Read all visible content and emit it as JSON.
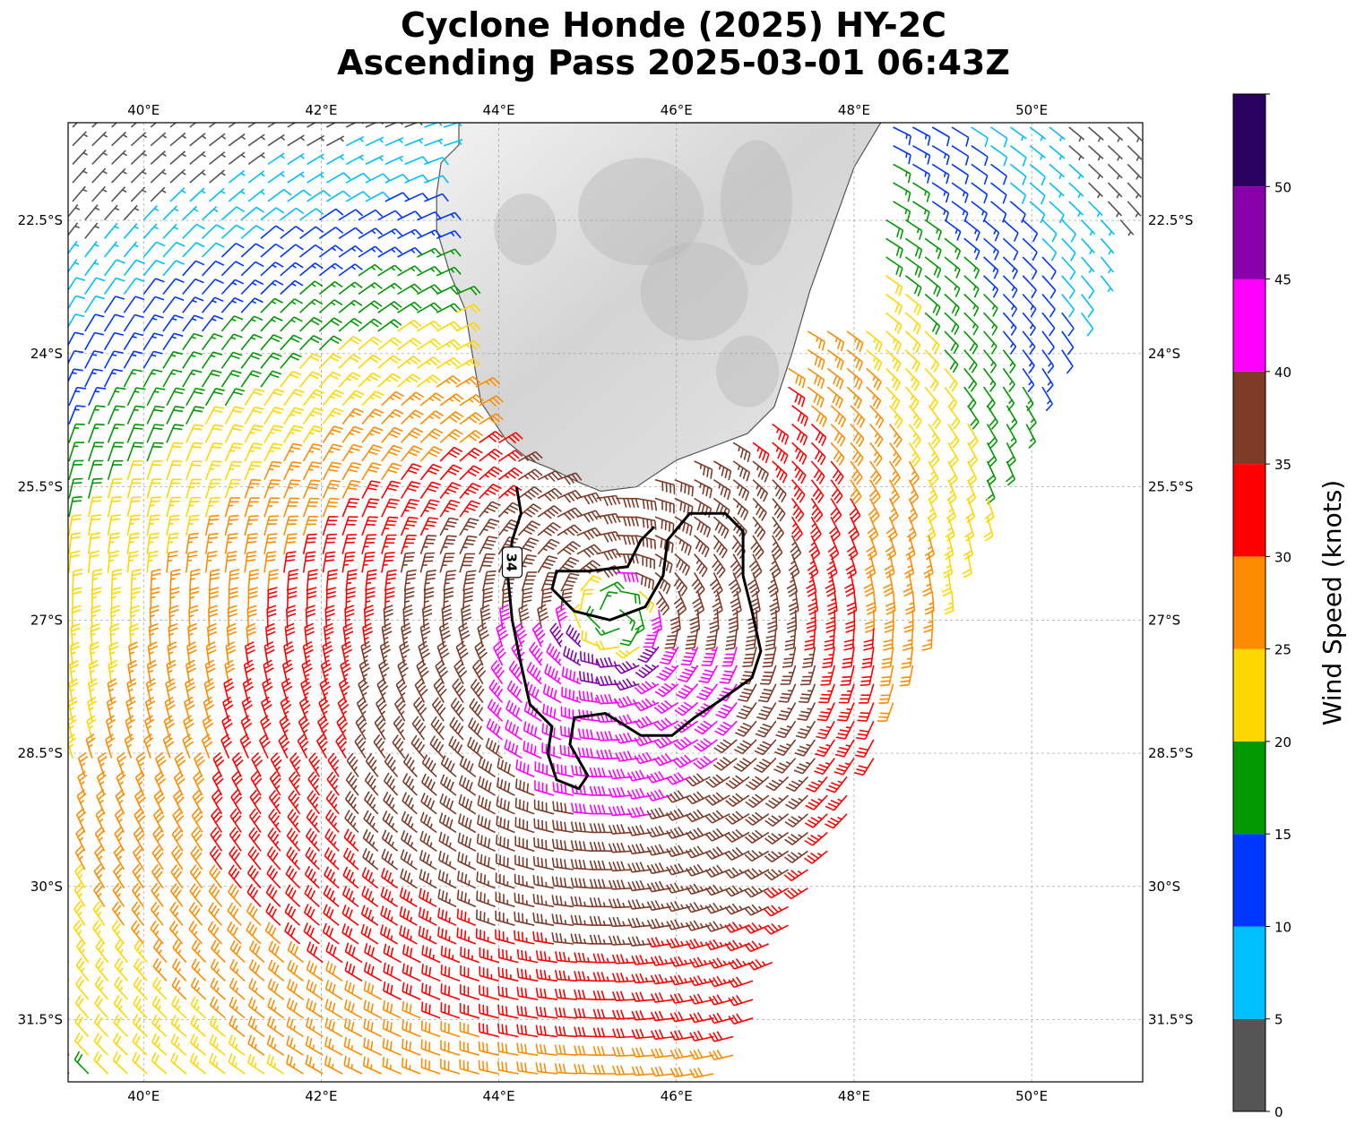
{
  "title_line1": "Cyclone Honde (2025) HY-2C",
  "title_line2": "Ascending Pass 2025-03-01 06:43Z",
  "map": {
    "lon_range": [
      39.15,
      51.25
    ],
    "lat_range": [
      -32.2,
      -21.4
    ],
    "lon_ticks": [
      {
        "value": 40,
        "label": "40°E"
      },
      {
        "value": 42,
        "label": "42°E"
      },
      {
        "value": 44,
        "label": "44°E"
      },
      {
        "value": 46,
        "label": "46°E"
      },
      {
        "value": 48,
        "label": "48°E"
      },
      {
        "value": 50,
        "label": "50°E"
      }
    ],
    "lat_ticks": [
      {
        "value": -22.5,
        "label": "22.5°S"
      },
      {
        "value": -24,
        "label": "24°S"
      },
      {
        "value": -25.5,
        "label": "25.5°S"
      },
      {
        "value": -27,
        "label": "27°S"
      },
      {
        "value": -28.5,
        "label": "28.5°S"
      },
      {
        "value": -30,
        "label": "30°S"
      },
      {
        "value": -31.5,
        "label": "31.5°S"
      }
    ],
    "gridlines": true,
    "land_label_visible": false,
    "land_color": "#e4e4e4",
    "coast_color": "#555555",
    "contour_label": "34",
    "contour_color": "#000000",
    "storm_center": {
      "lon": 45.3,
      "lat": -26.95
    }
  },
  "colorbar": {
    "title": "Wind Speed (knots)",
    "bins": [
      {
        "from": 0,
        "to": 5,
        "color": "#555555"
      },
      {
        "from": 5,
        "to": 10,
        "color": "#00bfff"
      },
      {
        "from": 10,
        "to": 15,
        "color": "#0037ff"
      },
      {
        "from": 15,
        "to": 20,
        "color": "#009900"
      },
      {
        "from": 20,
        "to": 25,
        "color": "#ffd700"
      },
      {
        "from": 25,
        "to": 30,
        "color": "#ff8c00"
      },
      {
        "from": 30,
        "to": 35,
        "color": "#ff0000"
      },
      {
        "from": 35,
        "to": 40,
        "color": "#7f3a28"
      },
      {
        "from": 40,
        "to": 45,
        "color": "#ff00ff"
      },
      {
        "from": 45,
        "to": 50,
        "color": "#8800aa"
      },
      {
        "from": 50,
        "to": 55,
        "color": "#2a0060"
      }
    ],
    "tick_labels": [
      "0",
      "5",
      "10",
      "15",
      "20",
      "25",
      "30",
      "35",
      "40",
      "45",
      "50"
    ]
  }
}
